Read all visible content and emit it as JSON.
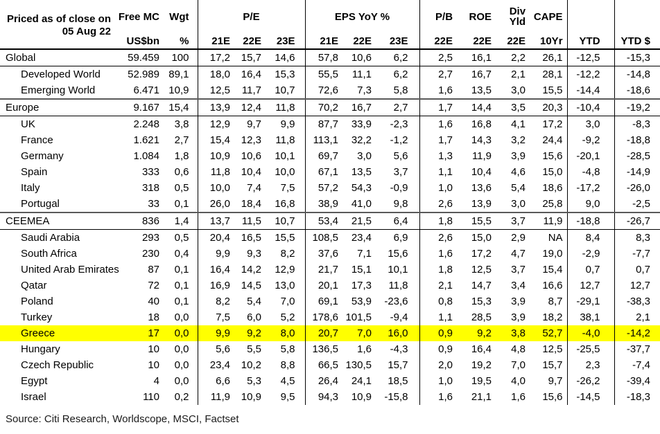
{
  "chart_data": {
    "type": "table",
    "corner": {
      "line1": "Priced as of close on",
      "line2": "05 Aug 22"
    },
    "group_headers": {
      "free_mc": "Free MC",
      "wgt": "Wgt",
      "pe": "P/E",
      "eps_yoy": "EPS YoY %",
      "pb": "P/B",
      "roe": "ROE",
      "div_line1": "Div",
      "div_line2": "Yld",
      "cape": "CAPE"
    },
    "sub_headers": [
      "US$bn",
      "%",
      "21E",
      "22E",
      "23E",
      "21E",
      "22E",
      "23E",
      "22E",
      "22E",
      "22E",
      "10Yr",
      "YTD",
      "YTD $"
    ],
    "rows": [
      {
        "name": "Global",
        "level": "section",
        "highlight": false,
        "values": [
          "59.459",
          "100",
          "17,2",
          "15,7",
          "14,6",
          "57,8",
          "10,6",
          "6,2",
          "2,5",
          "16,1",
          "2,2",
          "26,1",
          "-12,5",
          "-15,3"
        ]
      },
      {
        "name": "Developed World",
        "level": "sub",
        "highlight": false,
        "values": [
          "52.989",
          "89,1",
          "18,0",
          "16,4",
          "15,3",
          "55,5",
          "11,1",
          "6,2",
          "2,7",
          "16,7",
          "2,1",
          "28,1",
          "-12,2",
          "-14,8"
        ]
      },
      {
        "name": "Emerging World",
        "level": "sub",
        "highlight": false,
        "values": [
          "6.471",
          "10,9",
          "12,5",
          "11,7",
          "10,7",
          "72,6",
          "7,3",
          "5,8",
          "1,6",
          "13,5",
          "3,0",
          "15,5",
          "-14,4",
          "-18,6"
        ]
      },
      {
        "name": "Europe",
        "level": "section",
        "highlight": false,
        "values": [
          "9.167",
          "15,4",
          "13,9",
          "12,4",
          "11,8",
          "70,2",
          "16,7",
          "2,7",
          "1,7",
          "14,4",
          "3,5",
          "20,3",
          "-10,4",
          "-19,2"
        ]
      },
      {
        "name": "UK",
        "level": "sub",
        "highlight": false,
        "values": [
          "2.248",
          "3,8",
          "12,9",
          "9,7",
          "9,9",
          "87,7",
          "33,9",
          "-2,3",
          "1,6",
          "16,8",
          "4,1",
          "17,2",
          "3,0",
          "-8,3"
        ]
      },
      {
        "name": "France",
        "level": "sub",
        "highlight": false,
        "values": [
          "1.621",
          "2,7",
          "15,4",
          "12,3",
          "11,8",
          "113,1",
          "32,2",
          "-1,2",
          "1,7",
          "14,3",
          "3,2",
          "24,4",
          "-9,2",
          "-18,8"
        ]
      },
      {
        "name": "Germany",
        "level": "sub",
        "highlight": false,
        "values": [
          "1.084",
          "1,8",
          "10,9",
          "10,6",
          "10,1",
          "69,7",
          "3,0",
          "5,6",
          "1,3",
          "11,9",
          "3,9",
          "15,6",
          "-20,1",
          "-28,5"
        ]
      },
      {
        "name": "Spain",
        "level": "sub",
        "highlight": false,
        "values": [
          "333",
          "0,6",
          "11,8",
          "10,4",
          "10,0",
          "67,1",
          "13,5",
          "3,7",
          "1,1",
          "10,4",
          "4,6",
          "15,0",
          "-4,8",
          "-14,9"
        ]
      },
      {
        "name": "Italy",
        "level": "sub",
        "highlight": false,
        "values": [
          "318",
          "0,5",
          "10,0",
          "7,4",
          "7,5",
          "57,2",
          "54,3",
          "-0,9",
          "1,0",
          "13,6",
          "5,4",
          "18,6",
          "-17,2",
          "-26,0"
        ]
      },
      {
        "name": "Portugal",
        "level": "sub",
        "highlight": false,
        "values": [
          "33",
          "0,1",
          "26,0",
          "18,4",
          "16,8",
          "38,9",
          "41,0",
          "9,8",
          "2,6",
          "13,9",
          "3,0",
          "25,8",
          "9,0",
          "-2,5"
        ]
      },
      {
        "name": "CEEMEA",
        "level": "section",
        "highlight": false,
        "values": [
          "836",
          "1,4",
          "13,7",
          "11,5",
          "10,7",
          "53,4",
          "21,5",
          "6,4",
          "1,8",
          "15,5",
          "3,7",
          "11,9",
          "-18,8",
          "-26,7"
        ]
      },
      {
        "name": "Saudi Arabia",
        "level": "sub",
        "highlight": false,
        "values": [
          "293",
          "0,5",
          "20,4",
          "16,5",
          "15,5",
          "108,5",
          "23,4",
          "6,9",
          "2,6",
          "15,0",
          "2,9",
          "NA",
          "8,4",
          "8,3"
        ]
      },
      {
        "name": "South Africa",
        "level": "sub",
        "highlight": false,
        "values": [
          "230",
          "0,4",
          "9,9",
          "9,3",
          "8,2",
          "37,6",
          "7,1",
          "15,6",
          "1,6",
          "17,2",
          "4,7",
          "19,0",
          "-2,9",
          "-7,7"
        ]
      },
      {
        "name": "United Arab Emirates",
        "level": "sub",
        "highlight": false,
        "values": [
          "87",
          "0,1",
          "16,4",
          "14,2",
          "12,9",
          "21,7",
          "15,1",
          "10,1",
          "1,8",
          "12,5",
          "3,7",
          "15,4",
          "0,7",
          "0,7"
        ]
      },
      {
        "name": "Qatar",
        "level": "sub",
        "highlight": false,
        "values": [
          "72",
          "0,1",
          "16,9",
          "14,5",
          "13,0",
          "20,1",
          "17,3",
          "11,8",
          "2,1",
          "14,7",
          "3,4",
          "16,6",
          "12,7",
          "12,7"
        ]
      },
      {
        "name": "Poland",
        "level": "sub",
        "highlight": false,
        "values": [
          "40",
          "0,1",
          "8,2",
          "5,4",
          "7,0",
          "69,1",
          "53,9",
          "-23,6",
          "0,8",
          "15,3",
          "3,9",
          "8,7",
          "-29,1",
          "-38,3"
        ]
      },
      {
        "name": "Turkey",
        "level": "sub",
        "highlight": false,
        "values": [
          "18",
          "0,0",
          "7,5",
          "6,0",
          "5,2",
          "178,6",
          "101,5",
          "-9,4",
          "1,1",
          "28,5",
          "3,9",
          "18,2",
          "38,1",
          "2,1"
        ]
      },
      {
        "name": "Greece",
        "level": "sub",
        "highlight": true,
        "values": [
          "17",
          "0,0",
          "9,9",
          "9,2",
          "8,0",
          "20,7",
          "7,0",
          "16,0",
          "0,9",
          "9,2",
          "3,8",
          "52,7",
          "-4,0",
          "-14,2"
        ]
      },
      {
        "name": "Hungary",
        "level": "sub",
        "highlight": false,
        "values": [
          "10",
          "0,0",
          "5,6",
          "5,5",
          "5,8",
          "136,5",
          "1,6",
          "-4,3",
          "0,9",
          "16,4",
          "4,8",
          "12,5",
          "-25,5",
          "-37,7"
        ]
      },
      {
        "name": "Czech Republic",
        "level": "sub",
        "highlight": false,
        "values": [
          "10",
          "0,0",
          "23,4",
          "10,2",
          "8,8",
          "66,5",
          "130,5",
          "15,7",
          "2,0",
          "19,2",
          "7,0",
          "15,7",
          "2,3",
          "-7,4"
        ]
      },
      {
        "name": "Egypt",
        "level": "sub",
        "highlight": false,
        "values": [
          "4",
          "0,0",
          "6,6",
          "5,3",
          "4,5",
          "26,4",
          "24,1",
          "18,5",
          "1,0",
          "19,5",
          "4,0",
          "9,7",
          "-26,2",
          "-39,4"
        ]
      },
      {
        "name": "Israel",
        "level": "sub",
        "highlight": false,
        "values": [
          "110",
          "0,2",
          "11,9",
          "10,9",
          "9,5",
          "94,3",
          "10,9",
          "-15,8",
          "1,6",
          "21,1",
          "1,6",
          "15,6",
          "-14,5",
          "-18,3"
        ]
      }
    ],
    "source": "Source: Citi Research, Worldscope, MSCI, Factset",
    "highlight_color": "#ffff00"
  }
}
